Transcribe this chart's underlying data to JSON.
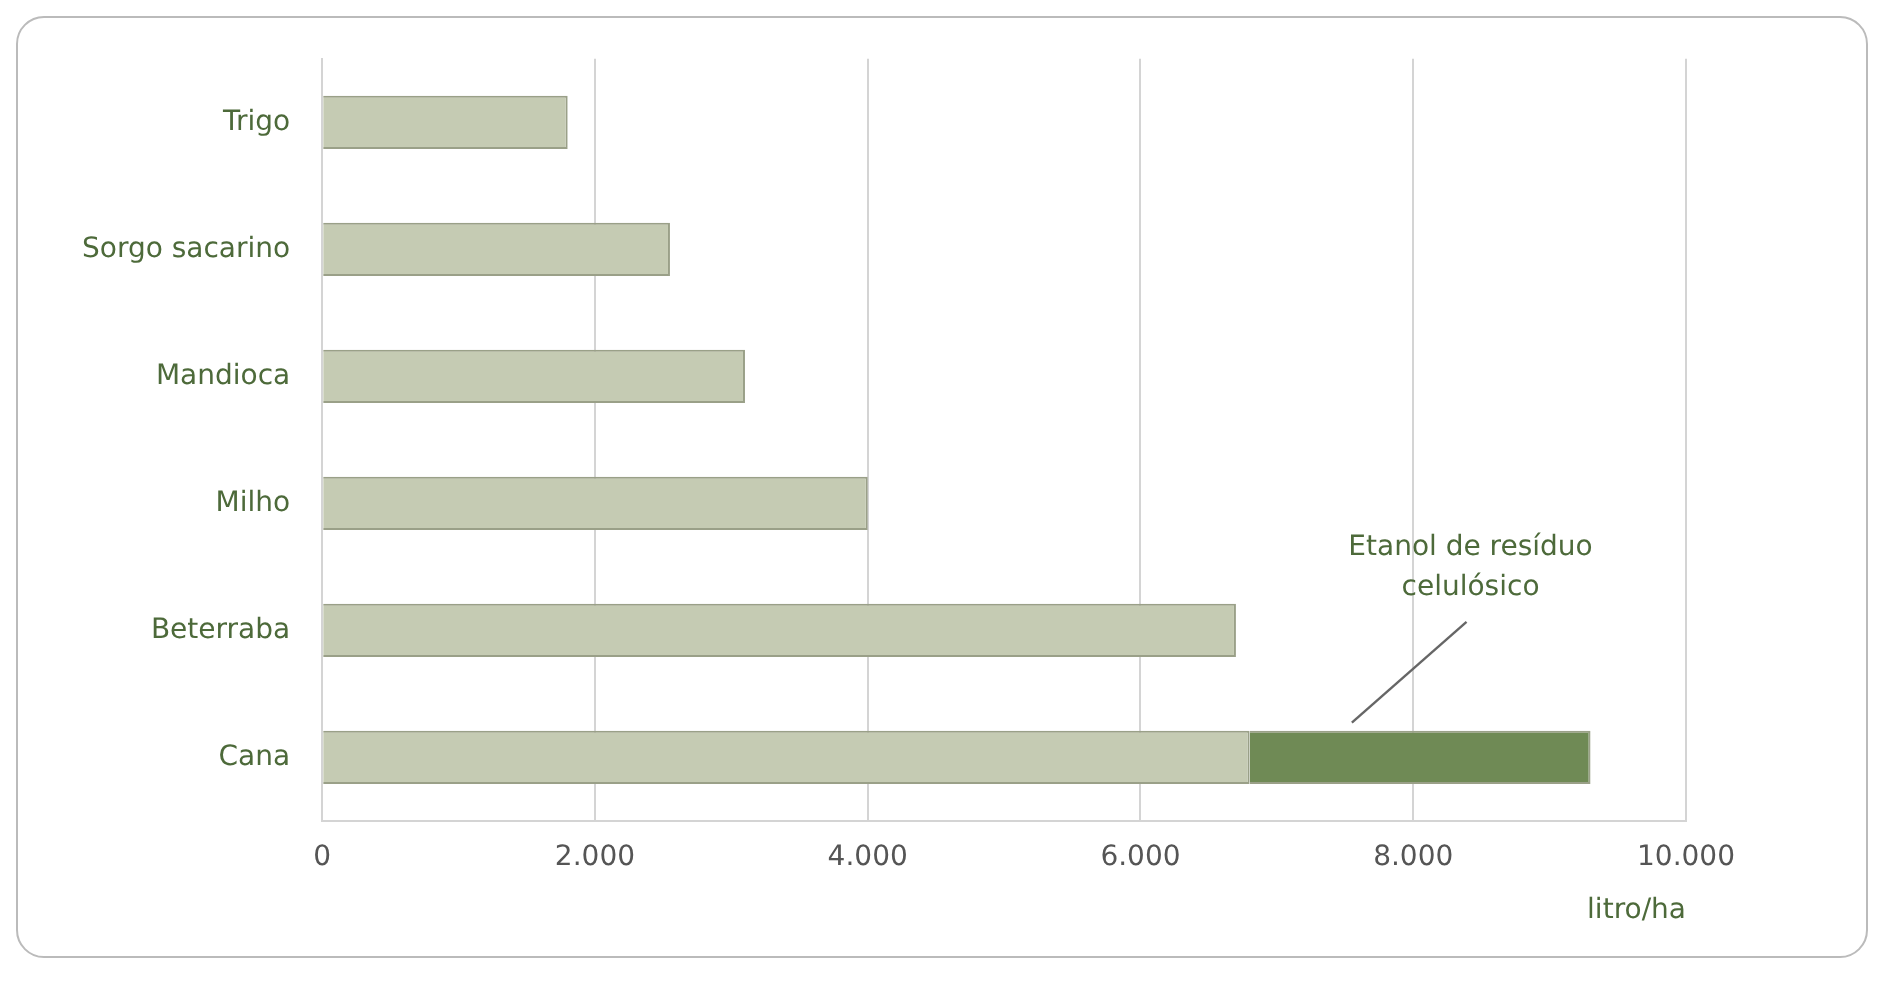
{
  "chart_data": {
    "type": "bar",
    "orientation": "horizontal",
    "stacked": true,
    "categories": [
      "Trigo",
      "Sorgo sacarino",
      "Mandioca",
      "Milho",
      "Beterraba",
      "Cana"
    ],
    "series": [
      {
        "color": "#c5cbb3",
        "values": [
          1800,
          2550,
          3100,
          4000,
          6700,
          6800
        ]
      },
      {
        "name": "Etanol de resíduo celulósico",
        "color": "#6f8a55",
        "values": [
          null,
          null,
          null,
          null,
          null,
          2500
        ]
      }
    ],
    "xlim": [
      0,
      10000
    ],
    "xticks": [
      0,
      {
        "value": 2000,
        "label": "2.000"
      },
      {
        "value": 4000,
        "label": "4.000"
      },
      {
        "value": 6000,
        "label": "6.000"
      },
      {
        "value": 8000,
        "label": "8.000"
      },
      {
        "value": 10000,
        "label": "10.000"
      }
    ],
    "xlabel": "litro/ha",
    "grid": "x",
    "legend": false
  }
}
